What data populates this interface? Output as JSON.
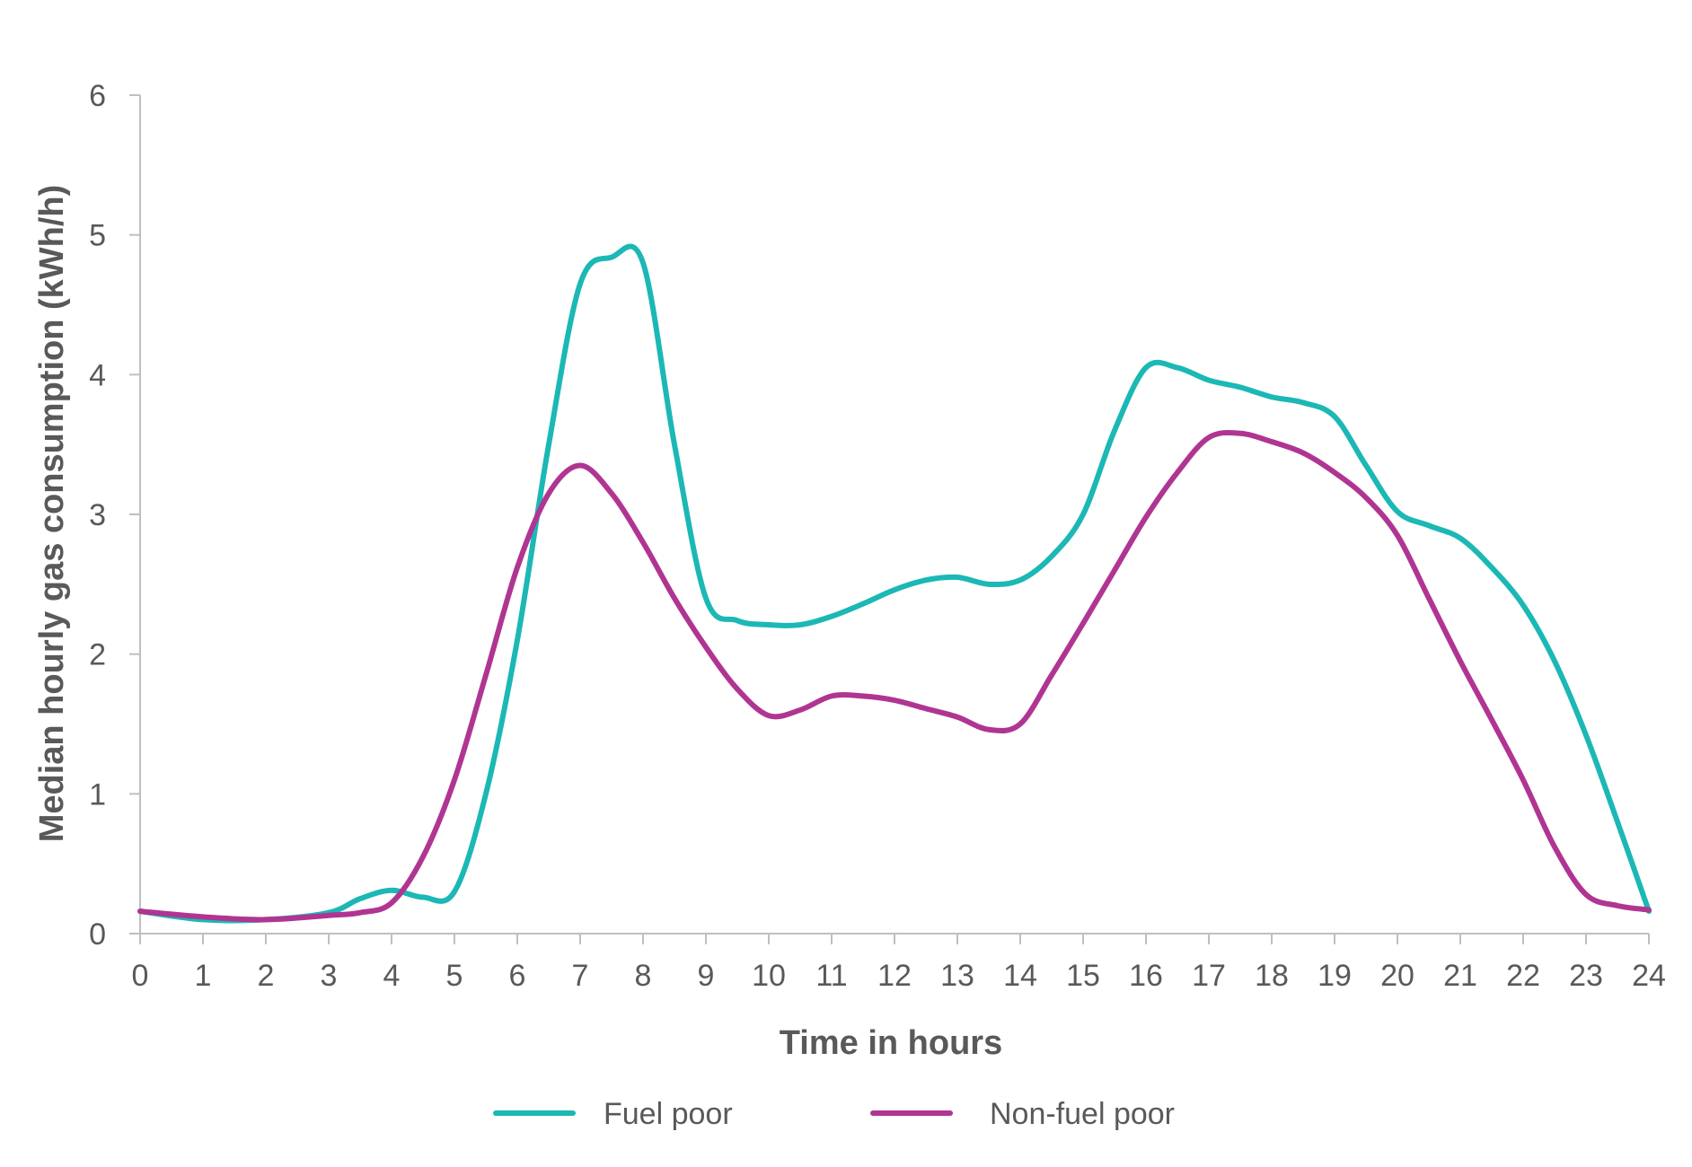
{
  "chart_data": {
    "type": "line",
    "title": "",
    "xlabel": "Time in hours",
    "ylabel": "Median hourly gas consumption (kWh/h)",
    "xlim": [
      0,
      24
    ],
    "ylim": [
      0,
      6
    ],
    "x_ticks": [
      "0",
      "1",
      "2",
      "3",
      "4",
      "5",
      "6",
      "7",
      "8",
      "9",
      "10",
      "11",
      "12",
      "13",
      "14",
      "15",
      "16",
      "17",
      "18",
      "19",
      "20",
      "21",
      "22",
      "23",
      "24"
    ],
    "y_ticks": [
      "0",
      "1",
      "2",
      "3",
      "4",
      "5",
      "6"
    ],
    "grid": false,
    "legend_position": "bottom",
    "series": [
      {
        "name": "Fuel poor",
        "color": "#1BB8B5",
        "points": [
          [
            0,
            0.16
          ],
          [
            1,
            0.1
          ],
          [
            2,
            0.1
          ],
          [
            3,
            0.15
          ],
          [
            3.5,
            0.25
          ],
          [
            4,
            0.31
          ],
          [
            4.5,
            0.26
          ],
          [
            5,
            0.3
          ],
          [
            5.5,
            1.0
          ],
          [
            6,
            2.1
          ],
          [
            6.5,
            3.5
          ],
          [
            7,
            4.65
          ],
          [
            7.5,
            4.84
          ],
          [
            8,
            4.8
          ],
          [
            8.5,
            3.5
          ],
          [
            9,
            2.4
          ],
          [
            9.5,
            2.24
          ],
          [
            10,
            2.21
          ],
          [
            10.5,
            2.21
          ],
          [
            11,
            2.27
          ],
          [
            11.5,
            2.36
          ],
          [
            12,
            2.46
          ],
          [
            12.5,
            2.53
          ],
          [
            13,
            2.55
          ],
          [
            13.5,
            2.5
          ],
          [
            14,
            2.53
          ],
          [
            14.5,
            2.7
          ],
          [
            15,
            3.0
          ],
          [
            15.5,
            3.6
          ],
          [
            16,
            4.05
          ],
          [
            16.5,
            4.05
          ],
          [
            17,
            3.96
          ],
          [
            17.5,
            3.91
          ],
          [
            18,
            3.84
          ],
          [
            18.5,
            3.8
          ],
          [
            19,
            3.7
          ],
          [
            19.5,
            3.35
          ],
          [
            20,
            3.02
          ],
          [
            20.5,
            2.92
          ],
          [
            21,
            2.83
          ],
          [
            21.5,
            2.62
          ],
          [
            22,
            2.35
          ],
          [
            22.5,
            1.95
          ],
          [
            23,
            1.42
          ],
          [
            23.5,
            0.8
          ],
          [
            24,
            0.16
          ]
        ]
      },
      {
        "name": "Non-fuel poor",
        "color": "#B03592",
        "points": [
          [
            0,
            0.16
          ],
          [
            1,
            0.12
          ],
          [
            2,
            0.1
          ],
          [
            3,
            0.13
          ],
          [
            3.5,
            0.15
          ],
          [
            4,
            0.22
          ],
          [
            4.5,
            0.55
          ],
          [
            5,
            1.1
          ],
          [
            5.5,
            1.85
          ],
          [
            6,
            2.62
          ],
          [
            6.5,
            3.15
          ],
          [
            7,
            3.35
          ],
          [
            7.5,
            3.15
          ],
          [
            8,
            2.8
          ],
          [
            8.5,
            2.4
          ],
          [
            9,
            2.05
          ],
          [
            9.5,
            1.75
          ],
          [
            10,
            1.56
          ],
          [
            10.5,
            1.6
          ],
          [
            11,
            1.7
          ],
          [
            11.5,
            1.7
          ],
          [
            12,
            1.67
          ],
          [
            12.5,
            1.61
          ],
          [
            13,
            1.55
          ],
          [
            13.5,
            1.46
          ],
          [
            14,
            1.5
          ],
          [
            14.5,
            1.85
          ],
          [
            15,
            2.22
          ],
          [
            15.5,
            2.6
          ],
          [
            16,
            2.98
          ],
          [
            16.5,
            3.3
          ],
          [
            17,
            3.55
          ],
          [
            17.5,
            3.58
          ],
          [
            18,
            3.52
          ],
          [
            18.5,
            3.44
          ],
          [
            19,
            3.3
          ],
          [
            19.5,
            3.12
          ],
          [
            20,
            2.85
          ],
          [
            20.5,
            2.4
          ],
          [
            21,
            1.95
          ],
          [
            21.5,
            1.53
          ],
          [
            22,
            1.1
          ],
          [
            22.5,
            0.62
          ],
          [
            23,
            0.28
          ],
          [
            23.5,
            0.2
          ],
          [
            24,
            0.17
          ]
        ]
      }
    ]
  }
}
